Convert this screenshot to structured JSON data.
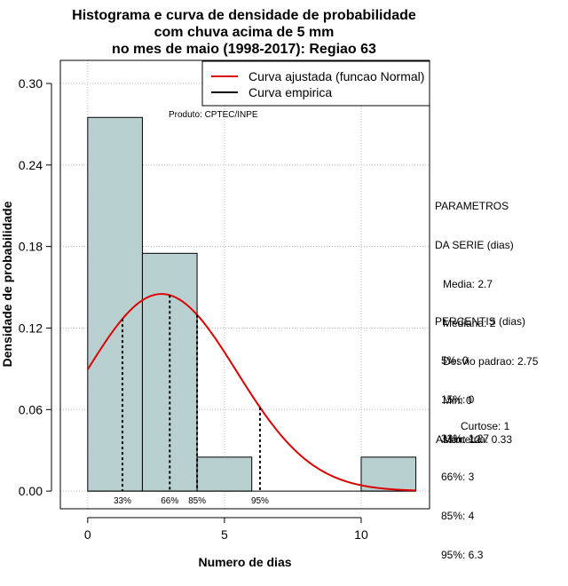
{
  "chart_data": {
    "type": "histogram",
    "title": [
      "Histograma e curva de densidade de probabilidade",
      "com chuva acima de 5 mm",
      "no mes de maio (1998-2017): Regiao 63"
    ],
    "xlabel": "Numero de dias",
    "ylabel": "Densidade de probabilidade",
    "xlim": [
      -1,
      12.5
    ],
    "ylim": [
      -0.013,
      0.317
    ],
    "x_ticks": [
      0,
      5,
      10
    ],
    "y_ticks": [
      0.0,
      0.06,
      0.12,
      0.18,
      0.24,
      0.3
    ],
    "y_tick_labels": [
      "0.00",
      "0.06",
      "0.12",
      "0.18",
      "0.24",
      "0.30"
    ],
    "bins": [
      {
        "from": 0,
        "to": 2,
        "density": 0.275
      },
      {
        "from": 2,
        "to": 4,
        "density": 0.175
      },
      {
        "from": 4,
        "to": 6,
        "density": 0.025
      },
      {
        "from": 6,
        "to": 8,
        "density": 0.0
      },
      {
        "from": 8,
        "to": 10,
        "density": 0.0
      },
      {
        "from": 10,
        "to": 12,
        "density": 0.025
      }
    ],
    "normal_fit": {
      "mean": 2.7,
      "sd": 2.75,
      "x_range": [
        0,
        12
      ],
      "color": "#dd0000"
    },
    "percentile_lines": [
      {
        "label": "33%",
        "x": 1.27
      },
      {
        "label": "66%",
        "x": 3
      },
      {
        "label": "85%",
        "x": 4
      },
      {
        "label": "95%",
        "x": 6.3
      }
    ],
    "legend": [
      {
        "label": "Curva ajustada (funcao Normal)",
        "color": "#dd0000"
      },
      {
        "label": "Curva empirica",
        "color": "#000000"
      }
    ],
    "bar_color": "#b8d0cf",
    "annotation": "Produto: CPTEC/INPE"
  },
  "sidebar": {
    "params_title": [
      "PARAMETROS",
      "DA SERIE (dias)"
    ],
    "params": [
      "Media: 2.7",
      "Mediana: 2",
      "Desvio padrao: 2.75",
      "Min: 0",
      "Max: 12"
    ],
    "percentis_title": "PERCENTIS (dias)",
    "percentis": [
      "5%: 0",
      "15%: 0",
      "33%: 1.27",
      "66%: 3",
      "85%: 4",
      "95%: 6.3"
    ],
    "curtose": "Curtose: 1",
    "assimetria": "Assimetria: 0.33"
  }
}
